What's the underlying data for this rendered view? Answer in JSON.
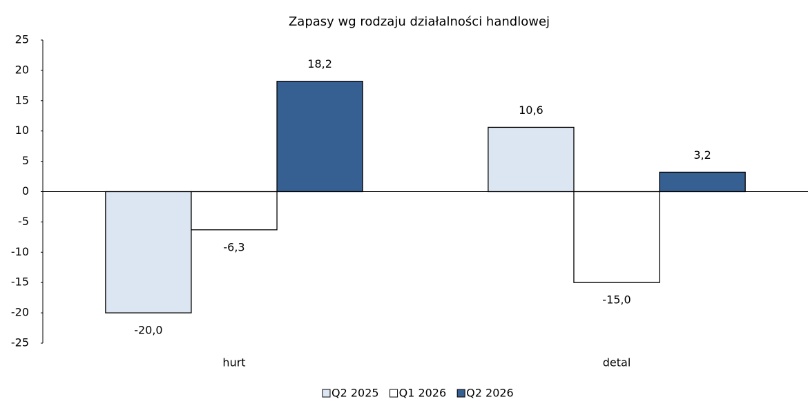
{
  "chart_data": {
    "type": "bar",
    "title": "Zapasy wg rodzaju działalności handlowej",
    "categories": [
      "hurt",
      "detal"
    ],
    "series": [
      {
        "name": "Q2 2025",
        "color": "#dce6f2",
        "values": [
          -20.0,
          10.6
        ],
        "value_labels": [
          "-20,0",
          "10,6"
        ]
      },
      {
        "name": "Q1 2026",
        "color": "#ffffff",
        "values": [
          -6.3,
          -15.0
        ],
        "value_labels": [
          "-6,3",
          "-15,0"
        ]
      },
      {
        "name": "Q2 2026",
        "color": "#376092",
        "values": [
          18.2,
          3.2
        ],
        "value_labels": [
          "18,2",
          "3,2"
        ]
      }
    ],
    "ylim": [
      -25,
      25
    ],
    "yticks": [
      25,
      20,
      15,
      10,
      5,
      0,
      -5,
      -10,
      -15,
      -20,
      -25
    ],
    "legend": "bottom"
  }
}
